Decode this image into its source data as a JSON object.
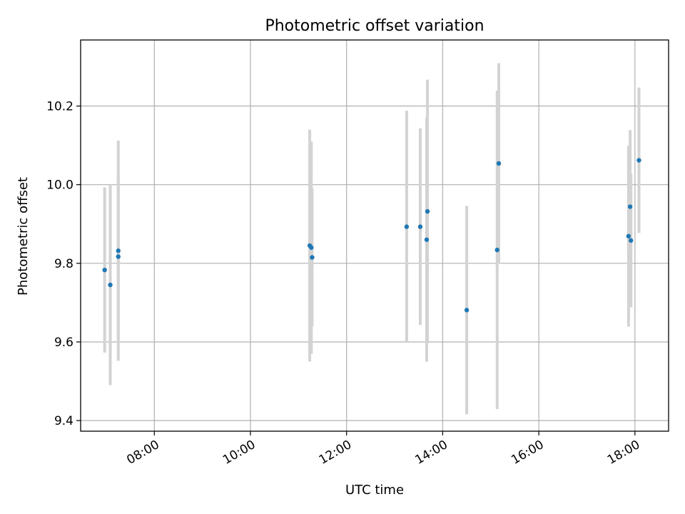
{
  "chart_data": {
    "type": "scatter",
    "title": "Photometric offset variation",
    "xlabel": "UTC time",
    "ylabel": "Photometric offset",
    "grid": true,
    "x_tick_labels": [
      "08:00",
      "10:00",
      "12:00",
      "14:00",
      "16:00",
      "18:00"
    ],
    "y_tick_labels": [
      "9.4",
      "9.6",
      "9.8",
      "10.0",
      "10.2"
    ],
    "x_ticks": [
      "08:00",
      "10:00",
      "12:00",
      "14:00",
      "16:00",
      "18:00"
    ],
    "y_ticks": [
      9.4,
      9.6,
      9.8,
      10.0,
      10.2
    ],
    "xlim": [
      "06:28",
      "18:42"
    ],
    "ylim": [
      9.373,
      10.368
    ],
    "colors": {
      "point": "#1f77b4",
      "error_bar": "#d3d3d3",
      "grid": "#b0b0b0"
    },
    "points": [
      {
        "x": "06:58",
        "y": 9.783,
        "yerr": 0.21
      },
      {
        "x": "07:05",
        "y": 9.745,
        "yerr": 0.255
      },
      {
        "x": "07:15",
        "y": 9.832,
        "yerr": 0.28
      },
      {
        "x": "07:15",
        "y": 9.817,
        "yerr": 0.21
      },
      {
        "x": "11:14",
        "y": 9.845,
        "yerr": 0.295
      },
      {
        "x": "11:16",
        "y": 9.84,
        "yerr": 0.27
      },
      {
        "x": "11:17",
        "y": 9.815,
        "yerr": 0.175
      },
      {
        "x": "13:15",
        "y": 9.893,
        "yerr": 0.295
      },
      {
        "x": "13:32",
        "y": 9.893,
        "yerr": 0.25
      },
      {
        "x": "13:40",
        "y": 9.86,
        "yerr": 0.31
      },
      {
        "x": "13:41",
        "y": 9.932,
        "yerr": 0.335
      },
      {
        "x": "14:30",
        "y": 9.681,
        "yerr": 0.265
      },
      {
        "x": "15:08",
        "y": 9.834,
        "yerr": 0.405
      },
      {
        "x": "15:10",
        "y": 10.054,
        "yerr": 0.255
      },
      {
        "x": "17:52",
        "y": 9.869,
        "yerr": 0.23
      },
      {
        "x": "17:54",
        "y": 9.944,
        "yerr": 0.195
      },
      {
        "x": "17:55",
        "y": 9.858,
        "yerr": 0.17
      },
      {
        "x": "18:05",
        "y": 10.062,
        "yerr": 0.185
      }
    ]
  }
}
